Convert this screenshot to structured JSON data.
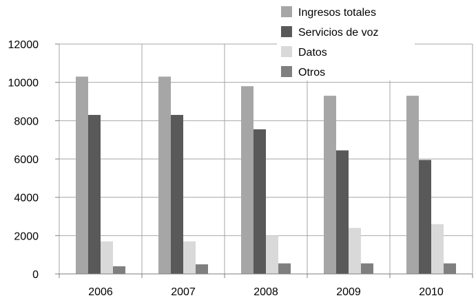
{
  "chart_data": {
    "type": "bar",
    "categories": [
      "2006",
      "2007",
      "2008",
      "2009",
      "2010"
    ],
    "series": [
      {
        "name": "Ingresos totales",
        "color": "#a6a6a6",
        "values": [
          10300,
          10300,
          9800,
          9300,
          9300
        ]
      },
      {
        "name": "Servicios de voz",
        "color": "#595959",
        "values": [
          8300,
          8300,
          7550,
          6450,
          5950
        ]
      },
      {
        "name": "Datos",
        "color": "#d9d9d9",
        "values": [
          1700,
          1700,
          2000,
          2400,
          2600
        ]
      },
      {
        "name": "Otros",
        "color": "#7f7f7f",
        "values": [
          400,
          500,
          550,
          550,
          550
        ]
      }
    ],
    "ylim": [
      0,
      12000
    ],
    "yticks": [
      "0",
      "2000",
      "4000",
      "6000",
      "8000",
      "10000",
      "12000"
    ],
    "grid": true,
    "legend": "top-right",
    "title": "",
    "xlabel": "",
    "ylabel": ""
  }
}
